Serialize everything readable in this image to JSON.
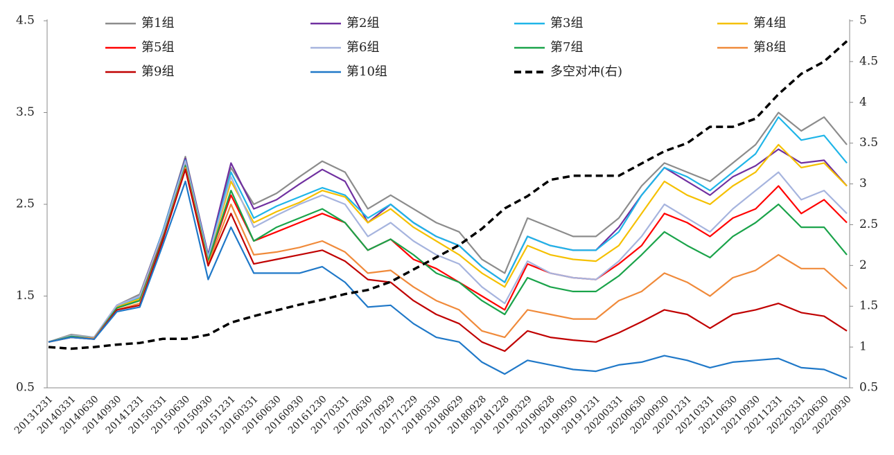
{
  "chart_data": {
    "type": "line",
    "categories": [
      "20131231",
      "20140331",
      "20140630",
      "20140930",
      "20141231",
      "20150331",
      "20150630",
      "20150930",
      "20151231",
      "20160331",
      "20160630",
      "20160930",
      "20161230",
      "20170331",
      "20170630",
      "20170929",
      "20171229",
      "20180330",
      "20180629",
      "20180928",
      "20181228",
      "20190329",
      "20190628",
      "20190930",
      "20191231",
      "20200331",
      "20200630",
      "20200930",
      "20201231",
      "20210331",
      "20210630",
      "20210930",
      "20211231",
      "20220331",
      "20220630",
      "20220930"
    ],
    "series": [
      {
        "name": "第1组",
        "color": "#8c8c8c",
        "values": [
          1.0,
          1.08,
          1.05,
          1.4,
          1.52,
          2.2,
          3.02,
          1.95,
          2.9,
          2.5,
          2.62,
          2.8,
          2.97,
          2.85,
          2.45,
          2.6,
          2.45,
          2.3,
          2.2,
          1.9,
          1.75,
          2.35,
          2.25,
          2.15,
          2.15,
          2.35,
          2.7,
          2.95,
          2.85,
          2.75,
          2.95,
          3.15,
          3.5,
          3.3,
          3.45,
          3.15
        ]
      },
      {
        "name": "第2组",
        "color": "#7030a0",
        "values": [
          1.0,
          1.07,
          1.05,
          1.4,
          1.5,
          2.2,
          3.0,
          1.95,
          2.95,
          2.45,
          2.55,
          2.72,
          2.88,
          2.75,
          2.3,
          2.5,
          2.3,
          2.15,
          2.05,
          1.82,
          1.65,
          2.15,
          2.05,
          2.0,
          2.0,
          2.25,
          2.6,
          2.9,
          2.75,
          2.6,
          2.8,
          2.92,
          3.1,
          2.95,
          2.98,
          2.7
        ]
      },
      {
        "name": "第3组",
        "color": "#1fb5e8",
        "values": [
          1.0,
          1.07,
          1.05,
          1.38,
          1.48,
          2.2,
          2.98,
          1.93,
          2.85,
          2.35,
          2.48,
          2.58,
          2.68,
          2.6,
          2.35,
          2.5,
          2.3,
          2.15,
          2.05,
          1.82,
          1.65,
          2.15,
          2.05,
          2.0,
          2.0,
          2.2,
          2.6,
          2.9,
          2.8,
          2.65,
          2.85,
          3.05,
          3.45,
          3.2,
          3.25,
          2.95
        ]
      },
      {
        "name": "第4组",
        "color": "#f5c000",
        "values": [
          1.0,
          1.07,
          1.05,
          1.38,
          1.47,
          2.15,
          2.95,
          1.9,
          2.75,
          2.3,
          2.42,
          2.52,
          2.65,
          2.58,
          2.3,
          2.45,
          2.25,
          2.1,
          1.95,
          1.75,
          1.6,
          2.05,
          1.95,
          1.9,
          1.88,
          2.05,
          2.4,
          2.75,
          2.6,
          2.5,
          2.7,
          2.85,
          3.15,
          2.9,
          2.95,
          2.7
        ]
      },
      {
        "name": "第5组",
        "color": "#ff0000",
        "values": [
          1.0,
          1.06,
          1.04,
          1.37,
          1.45,
          2.15,
          2.93,
          1.88,
          2.6,
          2.1,
          2.2,
          2.3,
          2.4,
          2.3,
          2.0,
          2.12,
          1.9,
          1.8,
          1.65,
          1.5,
          1.35,
          1.85,
          1.75,
          1.7,
          1.68,
          1.85,
          2.05,
          2.4,
          2.3,
          2.15,
          2.35,
          2.45,
          2.7,
          2.4,
          2.55,
          2.3
        ]
      },
      {
        "name": "第6组",
        "color": "#a6b4de",
        "values": [
          1.0,
          1.07,
          1.05,
          1.4,
          1.5,
          2.18,
          2.97,
          1.92,
          2.8,
          2.25,
          2.38,
          2.5,
          2.6,
          2.5,
          2.15,
          2.3,
          2.1,
          1.95,
          1.85,
          1.6,
          1.42,
          1.88,
          1.75,
          1.7,
          1.68,
          1.88,
          2.15,
          2.5,
          2.35,
          2.2,
          2.45,
          2.65,
          2.85,
          2.55,
          2.65,
          2.4
        ]
      },
      {
        "name": "第7组",
        "color": "#1aa34a",
        "values": [
          1.0,
          1.06,
          1.04,
          1.37,
          1.45,
          2.12,
          2.92,
          1.88,
          2.65,
          2.1,
          2.25,
          2.35,
          2.45,
          2.3,
          2.0,
          2.12,
          1.95,
          1.75,
          1.65,
          1.45,
          1.3,
          1.7,
          1.6,
          1.55,
          1.55,
          1.72,
          1.95,
          2.2,
          2.05,
          1.92,
          2.15,
          2.3,
          2.5,
          2.25,
          2.25,
          1.95
        ]
      },
      {
        "name": "第8组",
        "color": "#f08a3a",
        "values": [
          1.0,
          1.05,
          1.04,
          1.35,
          1.42,
          2.1,
          2.9,
          1.85,
          2.5,
          1.95,
          1.98,
          2.03,
          2.1,
          1.98,
          1.75,
          1.78,
          1.6,
          1.45,
          1.35,
          1.12,
          1.05,
          1.35,
          1.3,
          1.25,
          1.25,
          1.45,
          1.55,
          1.75,
          1.65,
          1.5,
          1.7,
          1.78,
          1.95,
          1.8,
          1.8,
          1.58
        ]
      },
      {
        "name": "第9组",
        "color": "#c00000",
        "values": [
          1.0,
          1.05,
          1.03,
          1.35,
          1.4,
          2.1,
          2.88,
          1.83,
          2.4,
          1.85,
          1.9,
          1.95,
          2.0,
          1.88,
          1.68,
          1.65,
          1.45,
          1.3,
          1.2,
          1.0,
          0.9,
          1.12,
          1.05,
          1.02,
          1.0,
          1.1,
          1.22,
          1.35,
          1.3,
          1.15,
          1.3,
          1.35,
          1.42,
          1.32,
          1.28,
          1.12
        ]
      },
      {
        "name": "第10组",
        "color": "#1f78c8",
        "values": [
          1.0,
          1.05,
          1.03,
          1.33,
          1.38,
          2.05,
          2.75,
          1.68,
          2.25,
          1.75,
          1.75,
          1.75,
          1.82,
          1.65,
          1.38,
          1.4,
          1.2,
          1.05,
          1.0,
          0.78,
          0.65,
          0.8,
          0.75,
          0.7,
          0.68,
          0.75,
          0.78,
          0.85,
          0.8,
          0.72,
          0.78,
          0.8,
          0.82,
          0.72,
          0.7,
          0.6
        ]
      },
      {
        "name": "多空对冲(右)",
        "color": "#000000",
        "axis": "y2",
        "line_style": "dashed",
        "values": [
          1.0,
          0.98,
          1.0,
          1.03,
          1.05,
          1.1,
          1.1,
          1.15,
          1.3,
          1.38,
          1.45,
          1.52,
          1.58,
          1.65,
          1.7,
          1.8,
          1.95,
          2.1,
          2.25,
          2.45,
          2.7,
          2.85,
          3.05,
          3.1,
          3.1,
          3.1,
          3.25,
          3.4,
          3.5,
          3.7,
          3.7,
          3.8,
          4.1,
          4.35,
          4.5,
          4.75
        ]
      }
    ],
    "ylim": [
      0.5,
      4.5
    ],
    "yticks": [
      0.5,
      1.5,
      2.5,
      3.5,
      4.5
    ],
    "y2lim": [
      0.5,
      5
    ],
    "y2ticks": [
      0.5,
      1,
      1.5,
      2,
      2.5,
      3,
      3.5,
      4,
      4.5,
      5
    ],
    "grid": false
  }
}
